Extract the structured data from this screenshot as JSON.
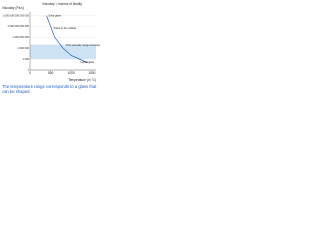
{
  "chart_data": {
    "type": "line",
    "title": "Viscosity = inverse of fluidity",
    "y_label": "Viscosity (Pa.s)",
    "x_label": "Temperature (in °C)",
    "x": [
      400,
      500,
      600,
      800,
      1000,
      1200,
      1400
    ],
    "series": [
      {
        "name": "Viscosity",
        "color": "#1f5fbf",
        "values": [
          1000000000000000,
          1000000000000,
          1000000000,
          1000000,
          10000,
          1000,
          100
        ]
      }
    ],
    "shaping_range": [
      1000,
      10000000
    ],
    "shaping_color": "#cfe3f7",
    "xlim": [
      0,
      1600
    ],
    "xticks": [
      0,
      500,
      1000,
      1500
    ],
    "ylim": [
      1,
      10000000000000000
    ],
    "yticks": [
      {
        "value": 1,
        "label": "1"
      },
      {
        "value": 1000,
        "label": "1 000"
      },
      {
        "value": 1000000,
        "label": "1 000 000"
      },
      {
        "value": 1000000000,
        "label": "1 000 000 000"
      },
      {
        "value": 1000000000000,
        "label": "1 000 000 000 000"
      },
      {
        "value": 1000000000000000,
        "label": "1 000 000 000 000 000"
      }
    ],
    "log_y": true,
    "grid": true,
    "annotations": [
      "Solid glass",
      "Paste to be molded",
      "This viscosity range corresponds to a glass that can be shaped",
      "Liquid glass"
    ]
  },
  "caption": "The temperature range corresponds to a glass that can be shaped"
}
